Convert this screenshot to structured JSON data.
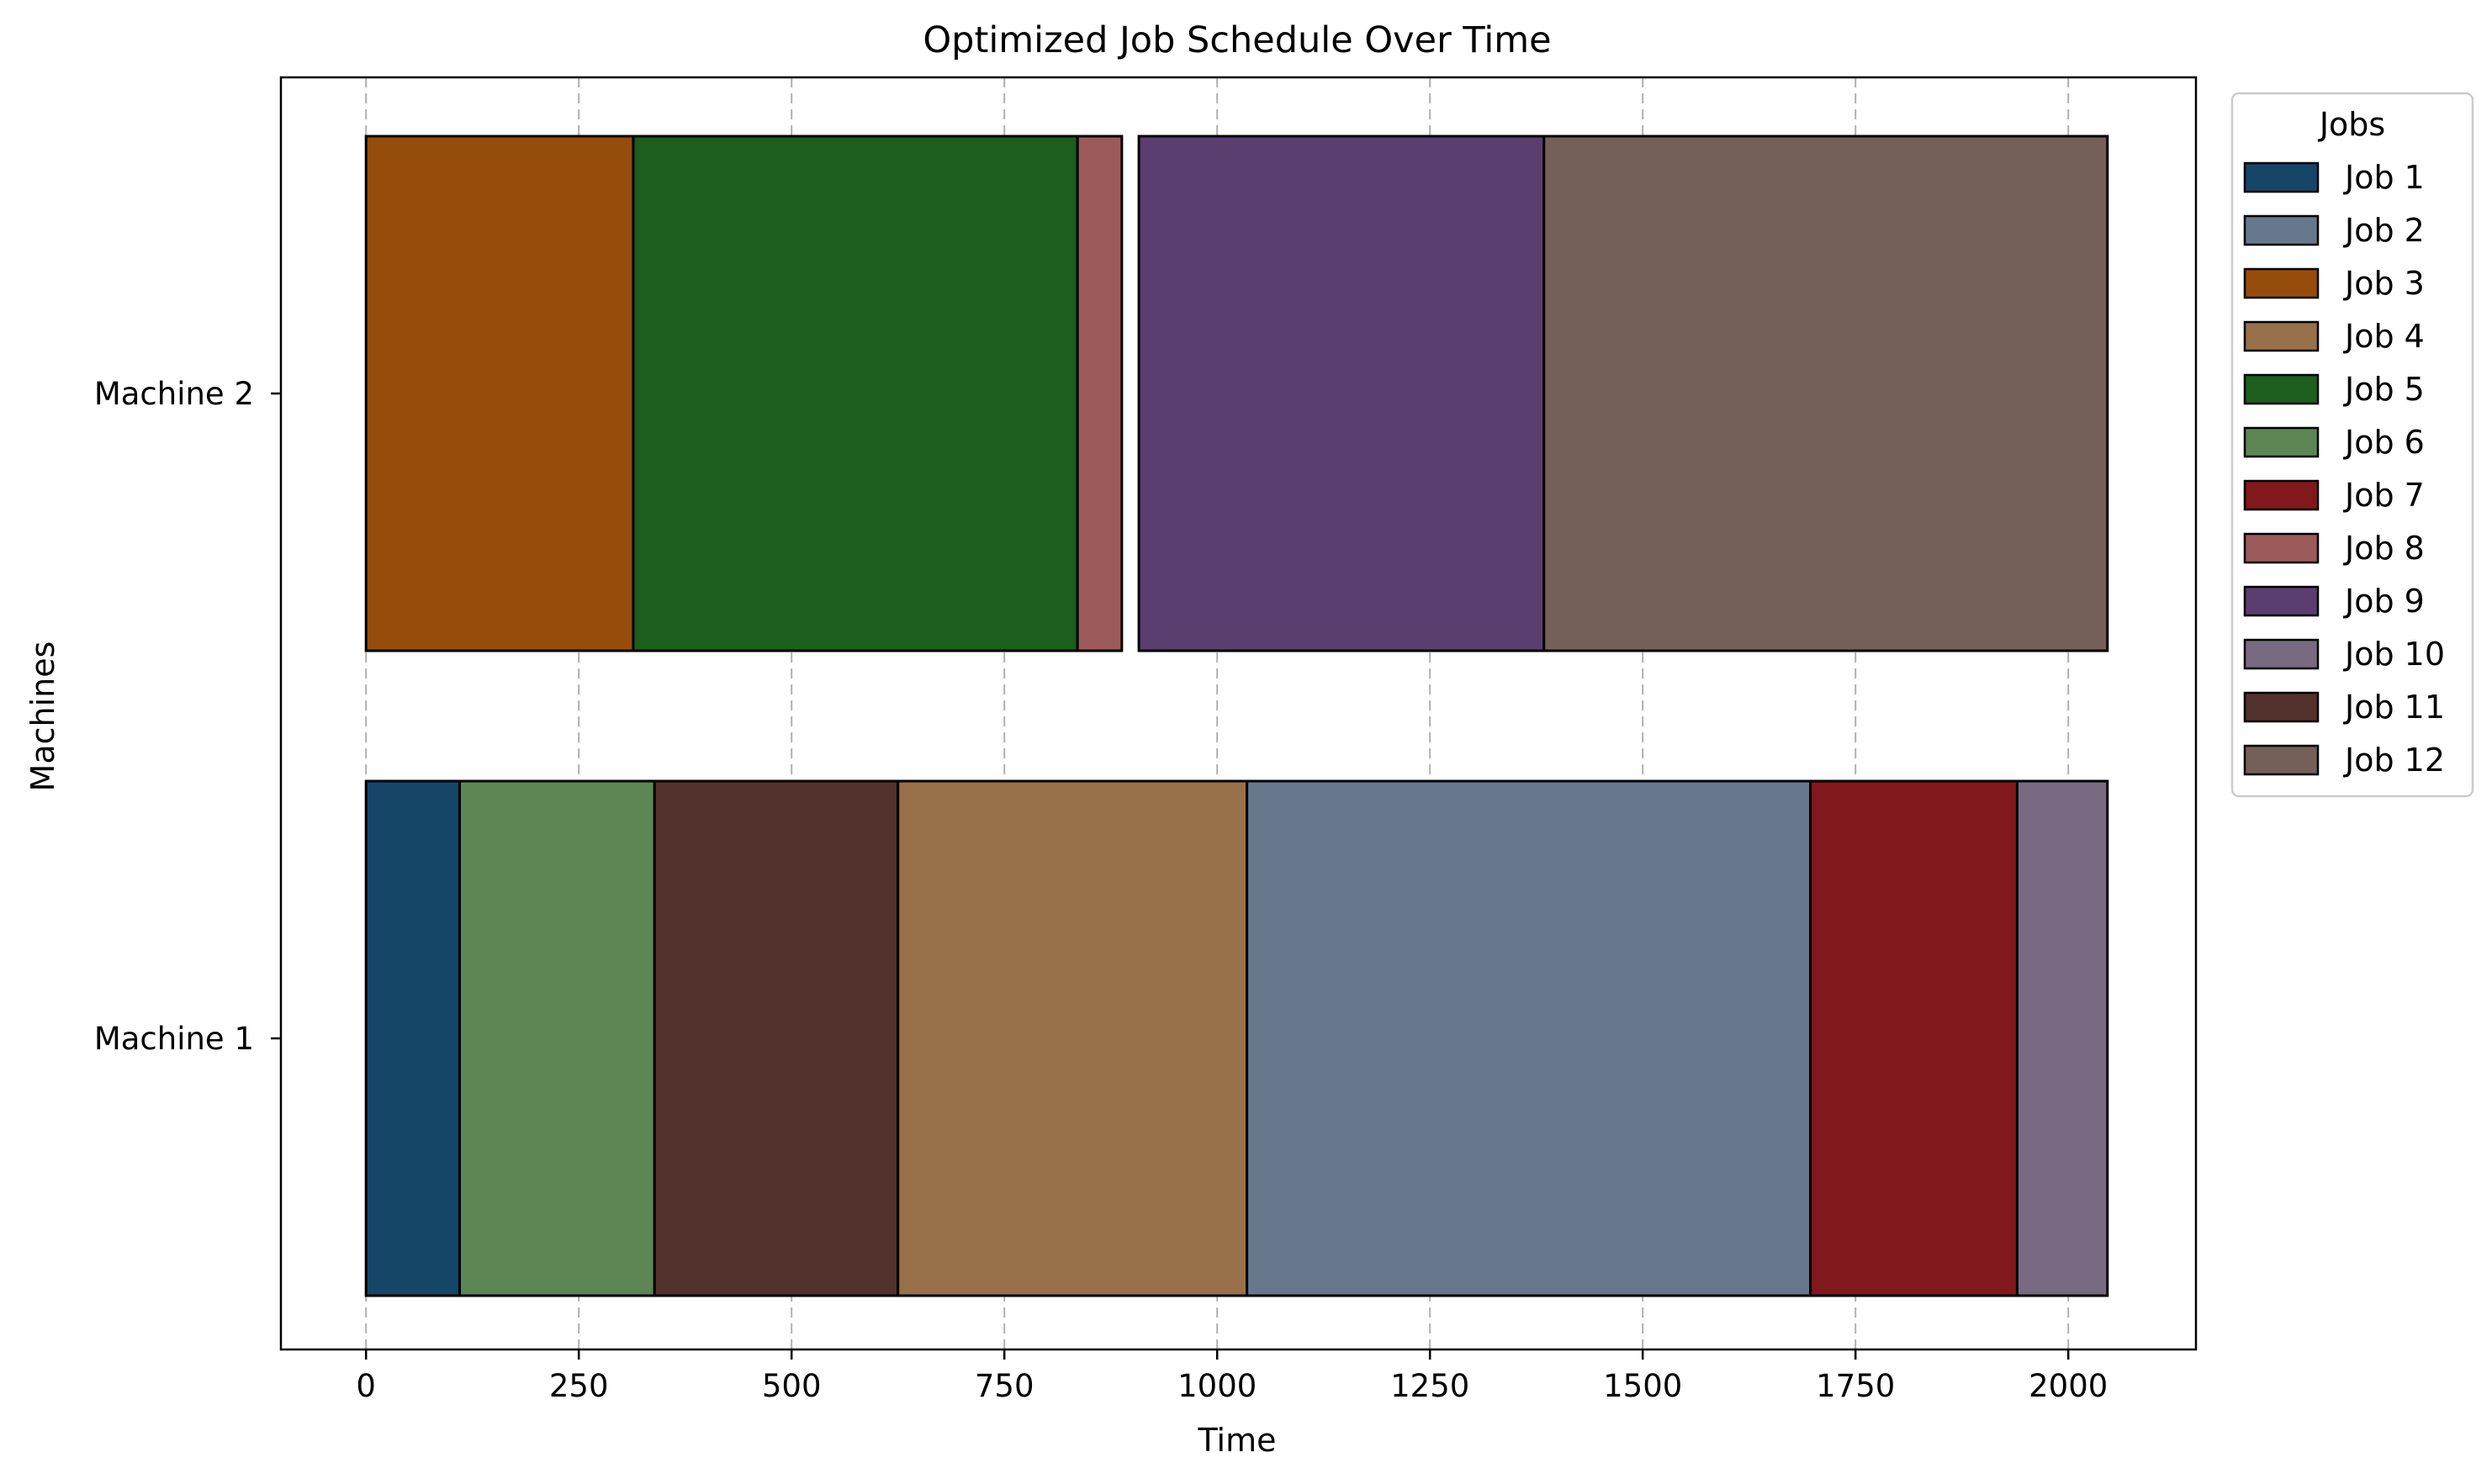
{
  "chart_data": {
    "type": "gantt",
    "title": "Optimized Job Schedule Over Time",
    "xlabel": "Time",
    "ylabel": "Machines",
    "xlim": [
      -100,
      2150
    ],
    "xticks": [
      0,
      250,
      500,
      750,
      1000,
      1250,
      1500,
      1750,
      2000
    ],
    "xtick_labels": [
      "0",
      "250",
      "500",
      "750",
      "1000",
      "1250",
      "1500",
      "1750",
      "2000"
    ],
    "grid": "x, dashed",
    "machines": [
      "Machine 1",
      "Machine 2"
    ],
    "legend": {
      "title": "Jobs",
      "placement": "outside right, top",
      "entries": [
        {
          "label": "Job 1",
          "color": "#154668"
        },
        {
          "label": "Job 2",
          "color": "#67778c"
        },
        {
          "label": "Job 3",
          "color": "#964c0a"
        },
        {
          "label": "Job 4",
          "color": "#98714a"
        },
        {
          "label": "Job 5",
          "color": "#1b5e1e"
        },
        {
          "label": "Job 6",
          "color": "#5c8654"
        },
        {
          "label": "Job 7",
          "color": "#81181b"
        },
        {
          "label": "Job 8",
          "color": "#9c5a5b"
        },
        {
          "label": "Job 9",
          "color": "#5a3e6f"
        },
        {
          "label": "Job 10",
          "color": "#786b81"
        },
        {
          "label": "Job 11",
          "color": "#53322d"
        },
        {
          "label": "Job 12",
          "color": "#756059"
        }
      ]
    },
    "tasks": [
      {
        "machine": "Machine 1",
        "job": "Job 1",
        "start": 0,
        "end": 110
      },
      {
        "machine": "Machine 1",
        "job": "Job 6",
        "start": 110,
        "end": 339
      },
      {
        "machine": "Machine 1",
        "job": "Job 11",
        "start": 339,
        "end": 625
      },
      {
        "machine": "Machine 1",
        "job": "Job 4",
        "start": 625,
        "end": 1035
      },
      {
        "machine": "Machine 1",
        "job": "Job 2",
        "start": 1035,
        "end": 1697
      },
      {
        "machine": "Machine 1",
        "job": "Job 7",
        "start": 1697,
        "end": 1940
      },
      {
        "machine": "Machine 1",
        "job": "Job 10",
        "start": 1940,
        "end": 2046
      },
      {
        "machine": "Machine 2",
        "job": "Job 3",
        "start": 0,
        "end": 314
      },
      {
        "machine": "Machine 2",
        "job": "Job 5",
        "start": 314,
        "end": 836
      },
      {
        "machine": "Machine 2",
        "job": "Job 8",
        "start": 836,
        "end": 888
      },
      {
        "machine": "Machine 2",
        "job": "Job 9",
        "start": 908,
        "end": 1384
      },
      {
        "machine": "Machine 2",
        "job": "Job 12",
        "start": 1384,
        "end": 2046
      }
    ]
  }
}
